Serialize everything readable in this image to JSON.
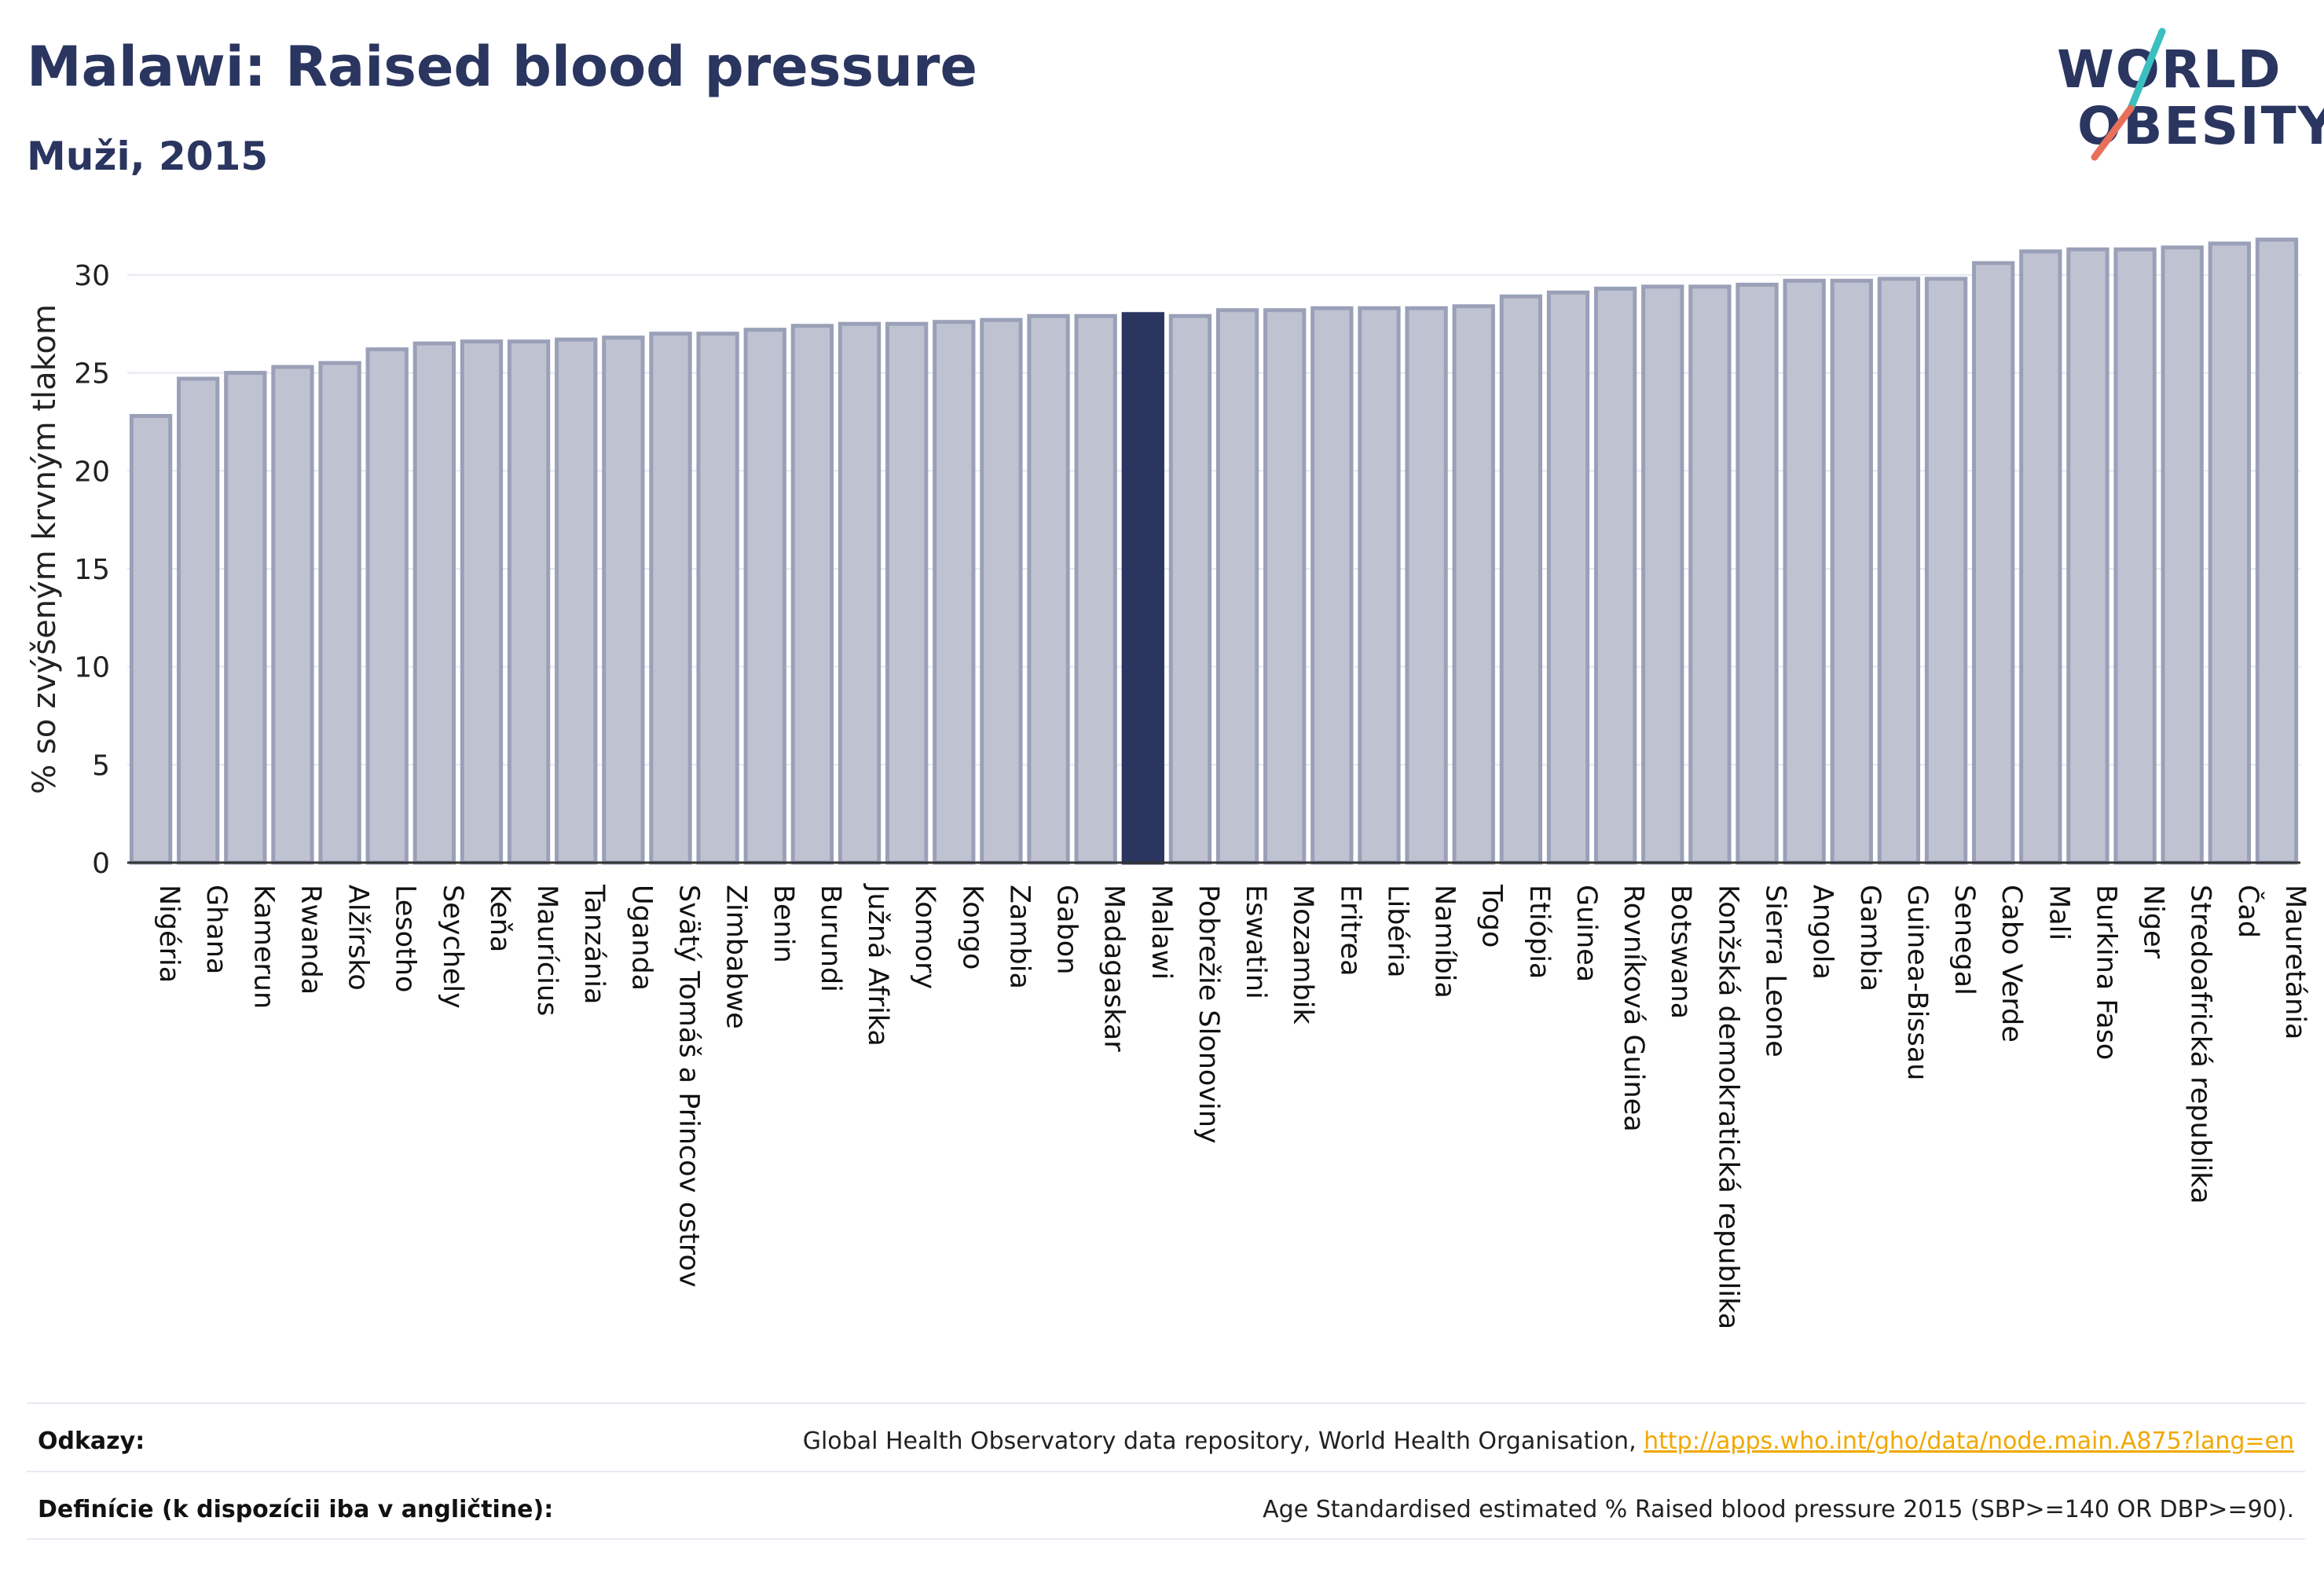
{
  "header": {
    "title": "Malawi: Raised blood pressure",
    "subtitle": "Muži, 2015"
  },
  "logo": {
    "line1": "WORLD",
    "line2": "OBESITY",
    "colors": {
      "text": "#2a3560",
      "slash_top": "#3bbfbf",
      "slash_bottom": "#e8705a"
    }
  },
  "colors": {
    "bar_fill": "#bfc3d1",
    "bar_stroke": "#9aa0b8",
    "highlight": "#2a3560",
    "grid": "#e6e8f0",
    "axis": "#333333"
  },
  "chart_data": {
    "type": "bar",
    "ylabel": "% so zvýšeným krvným tlakom",
    "ylim": [
      0,
      32
    ],
    "yticks": [
      0,
      5,
      10,
      15,
      20,
      25,
      30
    ],
    "grid": true,
    "highlight": "Malawi",
    "categories": [
      "Nigéria",
      "Ghana",
      "Kamerun",
      "Rwanda",
      "Alžírsko",
      "Lesotho",
      "Seychely",
      "Keňa",
      "Maurícius",
      "Tanzánia",
      "Uganda",
      "Svätý Tomáš a Princov ostrov",
      "Zimbabwe",
      "Benin",
      "Burundi",
      "Južná Afrika",
      "Komory",
      "Kongo",
      "Zambia",
      "Gabon",
      "Madagaskar",
      "Malawi",
      "Pobrežie Slonoviny",
      "Eswatini",
      "Mozambik",
      "Eritrea",
      "Libéria",
      "Namíbia",
      "Togo",
      "Etiópia",
      "Guinea",
      "Rovníková Guinea",
      "Botswana",
      "Konžská demokratická republika",
      "Sierra Leone",
      "Angola",
      "Gambia",
      "Guinea-Bissau",
      "Senegal",
      "Cabo Verde",
      "Mali",
      "Burkina Faso",
      "Niger",
      "Stredoafrická republika",
      "Čad",
      "Mauretánia"
    ],
    "values": [
      22.8,
      24.7,
      25.0,
      25.3,
      25.5,
      26.2,
      26.5,
      26.6,
      26.6,
      26.7,
      26.8,
      27.0,
      27.0,
      27.2,
      27.4,
      27.5,
      27.5,
      27.6,
      27.7,
      27.9,
      27.9,
      28.0,
      27.9,
      28.2,
      28.2,
      28.3,
      28.3,
      28.3,
      28.4,
      28.9,
      29.1,
      29.3,
      29.4,
      29.4,
      29.5,
      29.7,
      29.7,
      29.8,
      29.8,
      30.6,
      31.2,
      31.3,
      31.3,
      31.4,
      31.6,
      31.8
    ]
  },
  "footer": {
    "refs_label": "Odkazy:",
    "refs_text": "Global Health Observatory data repository, World Health Organisation, ",
    "refs_link": "http://apps.who.int/gho/data/node.main.A875?lang=en",
    "def_label": "Definície (k dispozícii iba v angličtine):",
    "def_text": "Age Standardised estimated % Raised blood pressure 2015 (SBP>=140 OR DBP>=90)."
  }
}
